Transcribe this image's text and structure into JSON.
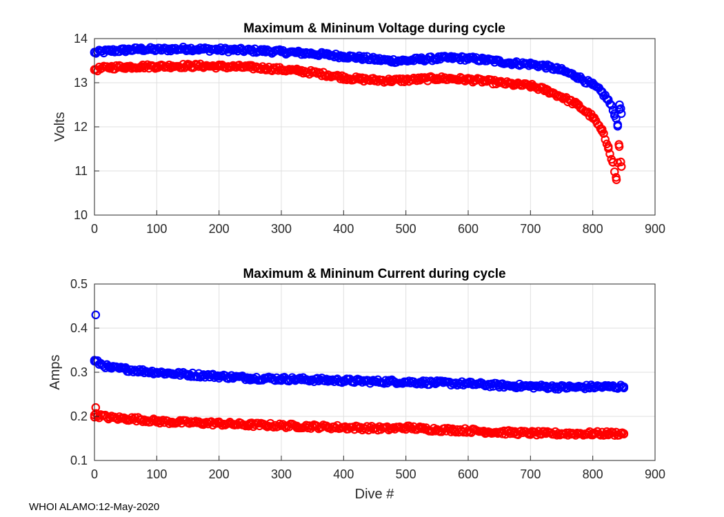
{
  "footer": "WHOI ALAMO:12-May-2020",
  "colors": {
    "max": "#0000ff",
    "min": "#ff0000",
    "grid": "#dfdfdf",
    "axis": "#262626"
  },
  "chart_data": [
    {
      "type": "scatter",
      "title": "Maximum & Mininum Voltage during cycle",
      "xlabel": "",
      "ylabel": "Volts",
      "xlim": [
        0,
        900
      ],
      "ylim": [
        10,
        14
      ],
      "xticks": [
        0,
        100,
        200,
        300,
        400,
        500,
        600,
        700,
        800,
        900
      ],
      "yticks": [
        10,
        11,
        12,
        13,
        14
      ],
      "grid": true,
      "series": [
        {
          "name": "Maximum",
          "color": "#0000ff",
          "x": [
            0,
            25,
            50,
            75,
            100,
            125,
            150,
            175,
            200,
            225,
            250,
            275,
            300,
            325,
            350,
            375,
            400,
            425,
            450,
            475,
            500,
            525,
            550,
            575,
            600,
            625,
            650,
            675,
            700,
            725,
            750,
            775,
            800,
            815,
            825,
            835,
            840,
            843,
            846
          ],
          "y": [
            13.68,
            13.72,
            13.74,
            13.76,
            13.75,
            13.76,
            13.77,
            13.76,
            13.75,
            13.74,
            13.73,
            13.72,
            13.7,
            13.68,
            13.66,
            13.63,
            13.6,
            13.57,
            13.53,
            13.5,
            13.5,
            13.53,
            13.55,
            13.56,
            13.55,
            13.52,
            13.48,
            13.44,
            13.42,
            13.37,
            13.28,
            13.14,
            12.95,
            12.78,
            12.6,
            12.3,
            12.05,
            12.5,
            12.3
          ]
        },
        {
          "name": "Minimum",
          "color": "#ff0000",
          "x": [
            0,
            25,
            50,
            75,
            100,
            125,
            150,
            175,
            200,
            225,
            250,
            275,
            300,
            325,
            350,
            375,
            400,
            425,
            450,
            475,
            500,
            525,
            550,
            575,
            600,
            625,
            650,
            675,
            700,
            725,
            750,
            775,
            800,
            815,
            825,
            832,
            838,
            842,
            846
          ],
          "y": [
            13.3,
            13.35,
            13.36,
            13.37,
            13.37,
            13.38,
            13.38,
            13.38,
            13.37,
            13.36,
            13.35,
            13.33,
            13.3,
            13.27,
            13.23,
            13.18,
            13.12,
            13.08,
            13.06,
            13.05,
            13.06,
            13.08,
            13.1,
            13.09,
            13.07,
            13.04,
            13.0,
            12.96,
            12.93,
            12.83,
            12.68,
            12.5,
            12.22,
            11.9,
            11.55,
            11.2,
            10.8,
            11.6,
            11.1
          ]
        }
      ]
    },
    {
      "type": "scatter",
      "title": "Maximum & Mininum Current during cycle",
      "xlabel": "Dive #",
      "ylabel": "Amps",
      "xlim": [
        0,
        900
      ],
      "ylim": [
        0.1,
        0.5
      ],
      "xticks": [
        0,
        100,
        200,
        300,
        400,
        500,
        600,
        700,
        800,
        900
      ],
      "yticks": [
        0.1,
        0.2,
        0.3,
        0.4,
        0.5
      ],
      "grid": true,
      "series": [
        {
          "name": "Maximum",
          "color": "#0000ff",
          "x": [
            2,
            0,
            25,
            50,
            75,
            100,
            125,
            150,
            175,
            200,
            225,
            250,
            275,
            300,
            325,
            350,
            375,
            400,
            425,
            450,
            475,
            500,
            525,
            550,
            575,
            600,
            625,
            650,
            675,
            700,
            725,
            750,
            775,
            800,
            825,
            850
          ],
          "y": [
            0.43,
            0.325,
            0.31,
            0.307,
            0.303,
            0.3,
            0.297,
            0.295,
            0.293,
            0.291,
            0.289,
            0.287,
            0.286,
            0.285,
            0.284,
            0.283,
            0.282,
            0.281,
            0.28,
            0.279,
            0.279,
            0.278,
            0.277,
            0.276,
            0.275,
            0.274,
            0.272,
            0.27,
            0.269,
            0.268,
            0.267,
            0.266,
            0.266,
            0.267,
            0.267,
            0.267
          ]
        },
        {
          "name": "Minimum",
          "color": "#ff0000",
          "x": [
            2,
            0,
            25,
            50,
            75,
            100,
            125,
            150,
            175,
            200,
            225,
            250,
            275,
            300,
            325,
            350,
            375,
            400,
            425,
            450,
            475,
            500,
            525,
            550,
            575,
            600,
            625,
            650,
            675,
            700,
            725,
            750,
            775,
            800,
            825,
            850
          ],
          "y": [
            0.22,
            0.203,
            0.197,
            0.195,
            0.193,
            0.189,
            0.187,
            0.186,
            0.185,
            0.184,
            0.182,
            0.181,
            0.18,
            0.179,
            0.178,
            0.177,
            0.176,
            0.175,
            0.174,
            0.173,
            0.172,
            0.175,
            0.172,
            0.17,
            0.169,
            0.168,
            0.166,
            0.164,
            0.163,
            0.162,
            0.161,
            0.161,
            0.161,
            0.161,
            0.161,
            0.161
          ]
        }
      ]
    }
  ]
}
